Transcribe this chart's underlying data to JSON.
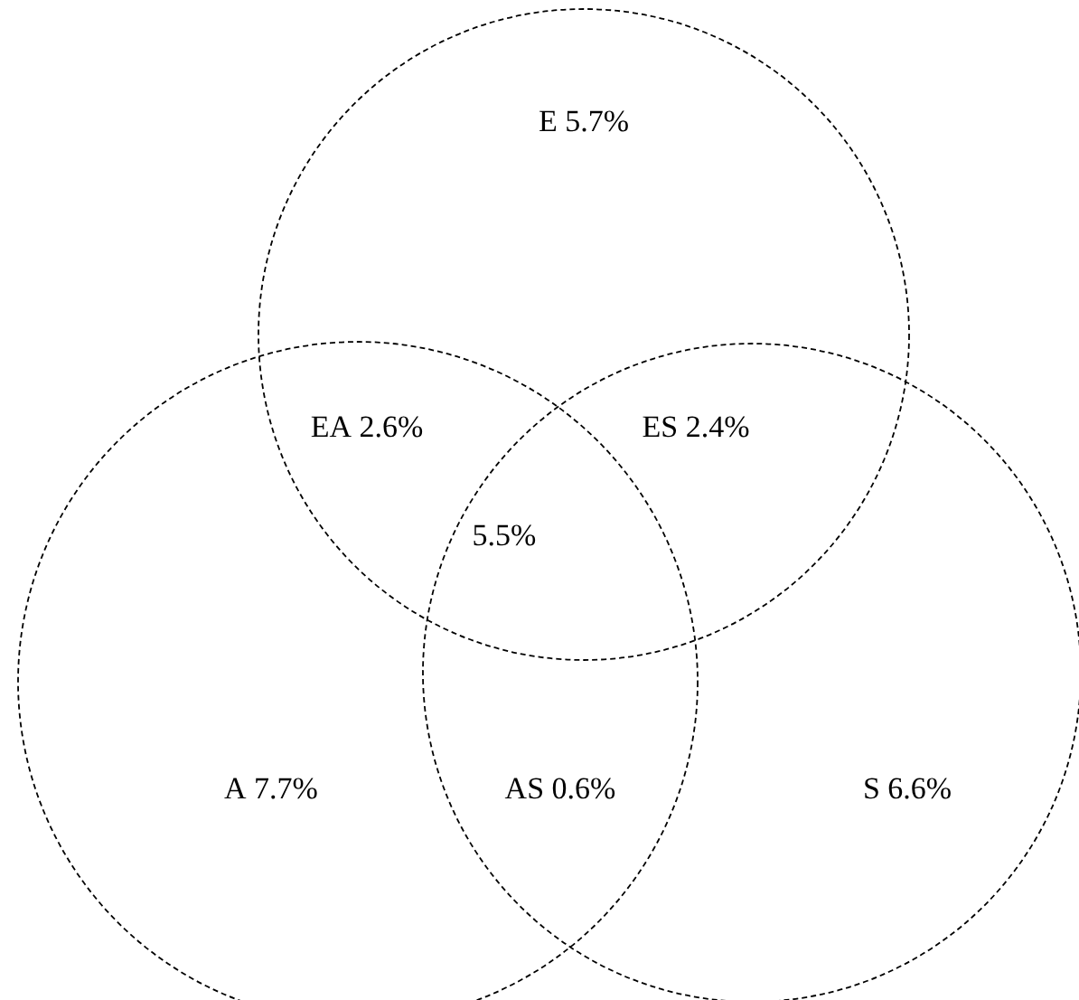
{
  "chart_data": {
    "type": "other",
    "categories": [
      "E",
      "EA",
      "ES",
      null,
      "A",
      "AS",
      "S"
    ],
    "values": [
      5.7,
      2.6,
      2.4,
      5.5,
      7.7,
      0.6,
      6.6
    ],
    "value_labels": [
      "5.7%",
      "2.6%",
      "2.4%",
      "5.5%",
      "7.7%",
      "0.6%",
      "6.6%"
    ]
  }
}
